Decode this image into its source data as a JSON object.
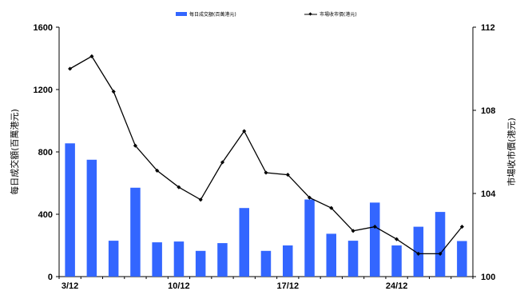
{
  "chart_data": {
    "type": "bar",
    "x": [
      "3/12",
      "4/12",
      "5/12",
      "6/12",
      "7/12",
      "10/12",
      "11/12",
      "12/12",
      "13/12",
      "14/12",
      "17/12",
      "18/12",
      "19/12",
      "20/12",
      "21/12",
      "24/12",
      "27/12",
      "28/12",
      "31/12"
    ],
    "x_tick_labels": [
      "3/12",
      "10/12",
      "17/12",
      "24/12"
    ],
    "series": [
      {
        "name": "每日成交額(百萬港元)",
        "type": "bar",
        "axis": "left",
        "color": "#3366ff",
        "values": [
          855,
          750,
          230,
          570,
          220,
          225,
          165,
          215,
          440,
          165,
          200,
          495,
          275,
          230,
          475,
          200,
          320,
          415,
          228
        ]
      },
      {
        "name": "市場收市價(港元)",
        "type": "line",
        "axis": "right",
        "color": "#000000",
        "values": [
          110.0,
          110.6,
          108.9,
          106.3,
          105.1,
          104.3,
          103.7,
          105.5,
          107.0,
          105.0,
          104.9,
          103.8,
          103.3,
          102.2,
          102.4,
          101.8,
          101.1,
          101.1,
          102.4
        ]
      }
    ],
    "ylabel": "每日成交額(百萬港元)",
    "y2label": "市場收市價(港元)",
    "ylim": [
      0,
      1600
    ],
    "y_ticks": [
      "0",
      "400",
      "800",
      "1200",
      "1600"
    ],
    "y2lim": [
      100,
      112
    ],
    "y2_ticks": [
      "100",
      "104",
      "108",
      "112"
    ],
    "legend_position": "top",
    "grid": false
  }
}
